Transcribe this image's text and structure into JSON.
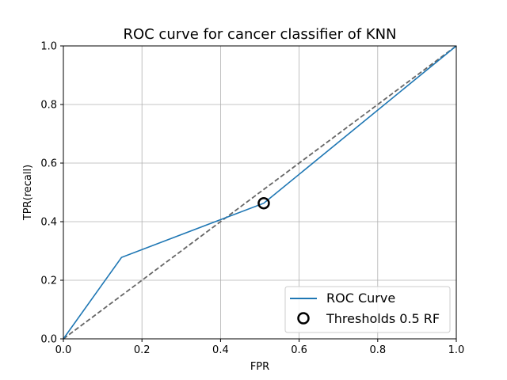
{
  "chart_data": {
    "type": "line",
    "title": "ROC curve for cancer classifier of KNN",
    "xlabel": "FPR",
    "ylabel": "TPR(recall)",
    "xlim": [
      0.0,
      1.0
    ],
    "ylim": [
      0.0,
      1.0
    ],
    "x_ticks": [
      "0.0",
      "0.2",
      "0.4",
      "0.6",
      "0.8",
      "1.0"
    ],
    "y_ticks": [
      "0.0",
      "0.2",
      "0.4",
      "0.6",
      "0.8",
      "1.0"
    ],
    "grid": true,
    "legend_position": "lower-right",
    "series": [
      {
        "name": "ROC Curve",
        "kind": "line",
        "color": "#1f77b4",
        "x": [
          0.0,
          0.148,
          0.51,
          1.0
        ],
        "y": [
          0.0,
          0.278,
          0.463,
          1.0
        ]
      },
      {
        "name": "",
        "kind": "dashed-line",
        "color": "#666666",
        "x": [
          0.0,
          1.0
        ],
        "y": [
          0.0,
          1.0
        ]
      },
      {
        "name": "Thresholds 0.5 RF",
        "kind": "marker",
        "color": "#000000",
        "marker": "open-circle",
        "x": [
          0.51
        ],
        "y": [
          0.463
        ]
      }
    ]
  }
}
